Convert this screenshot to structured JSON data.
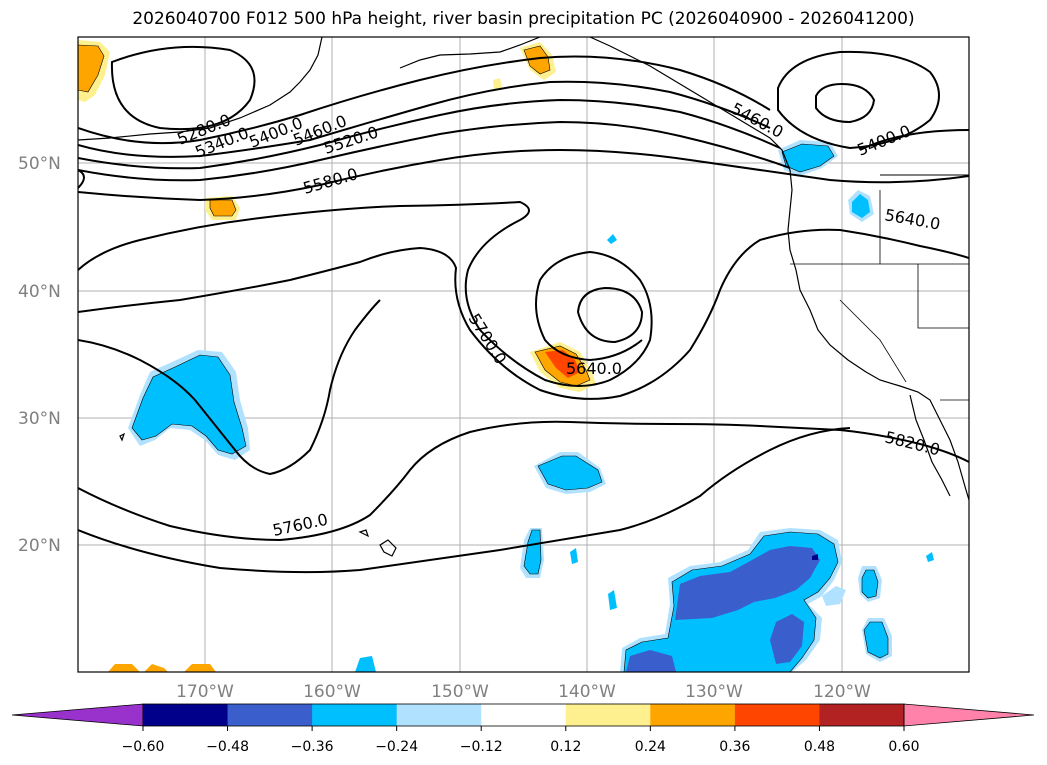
{
  "title": "2026040700 F012 500 hPa height, river basin precipitation PC (2026040900 - 2026041200)",
  "map": {
    "lat_labels": [
      "50°N",
      "40°N",
      "30°N",
      "20°N"
    ],
    "lon_labels": [
      "170°W",
      "160°W",
      "150°W",
      "140°W",
      "130°W",
      "120°W"
    ],
    "contour_labels": [
      "5280.0",
      "5340.0",
      "5400.0",
      "5460.0",
      "5520.0",
      "5580.0",
      "5460.0",
      "5400.0",
      "5640.0",
      "5700.0",
      "5640.0",
      "5820.0",
      "5760.0"
    ]
  },
  "colorbar": {
    "ticks": [
      "−0.60",
      "−0.48",
      "−0.36",
      "−0.24",
      "−0.12",
      "0.12",
      "0.24",
      "0.36",
      "0.48",
      "0.60"
    ],
    "colors": {
      "under": "#9932cc",
      "bins": [
        "#00008b",
        "#3a5fcd",
        "#00bfff",
        "#b0e2ff",
        "#ffffff",
        "#fff08f",
        "#ffa500",
        "#ff4500",
        "#b22222"
      ],
      "over": "#ff82ab"
    }
  }
}
